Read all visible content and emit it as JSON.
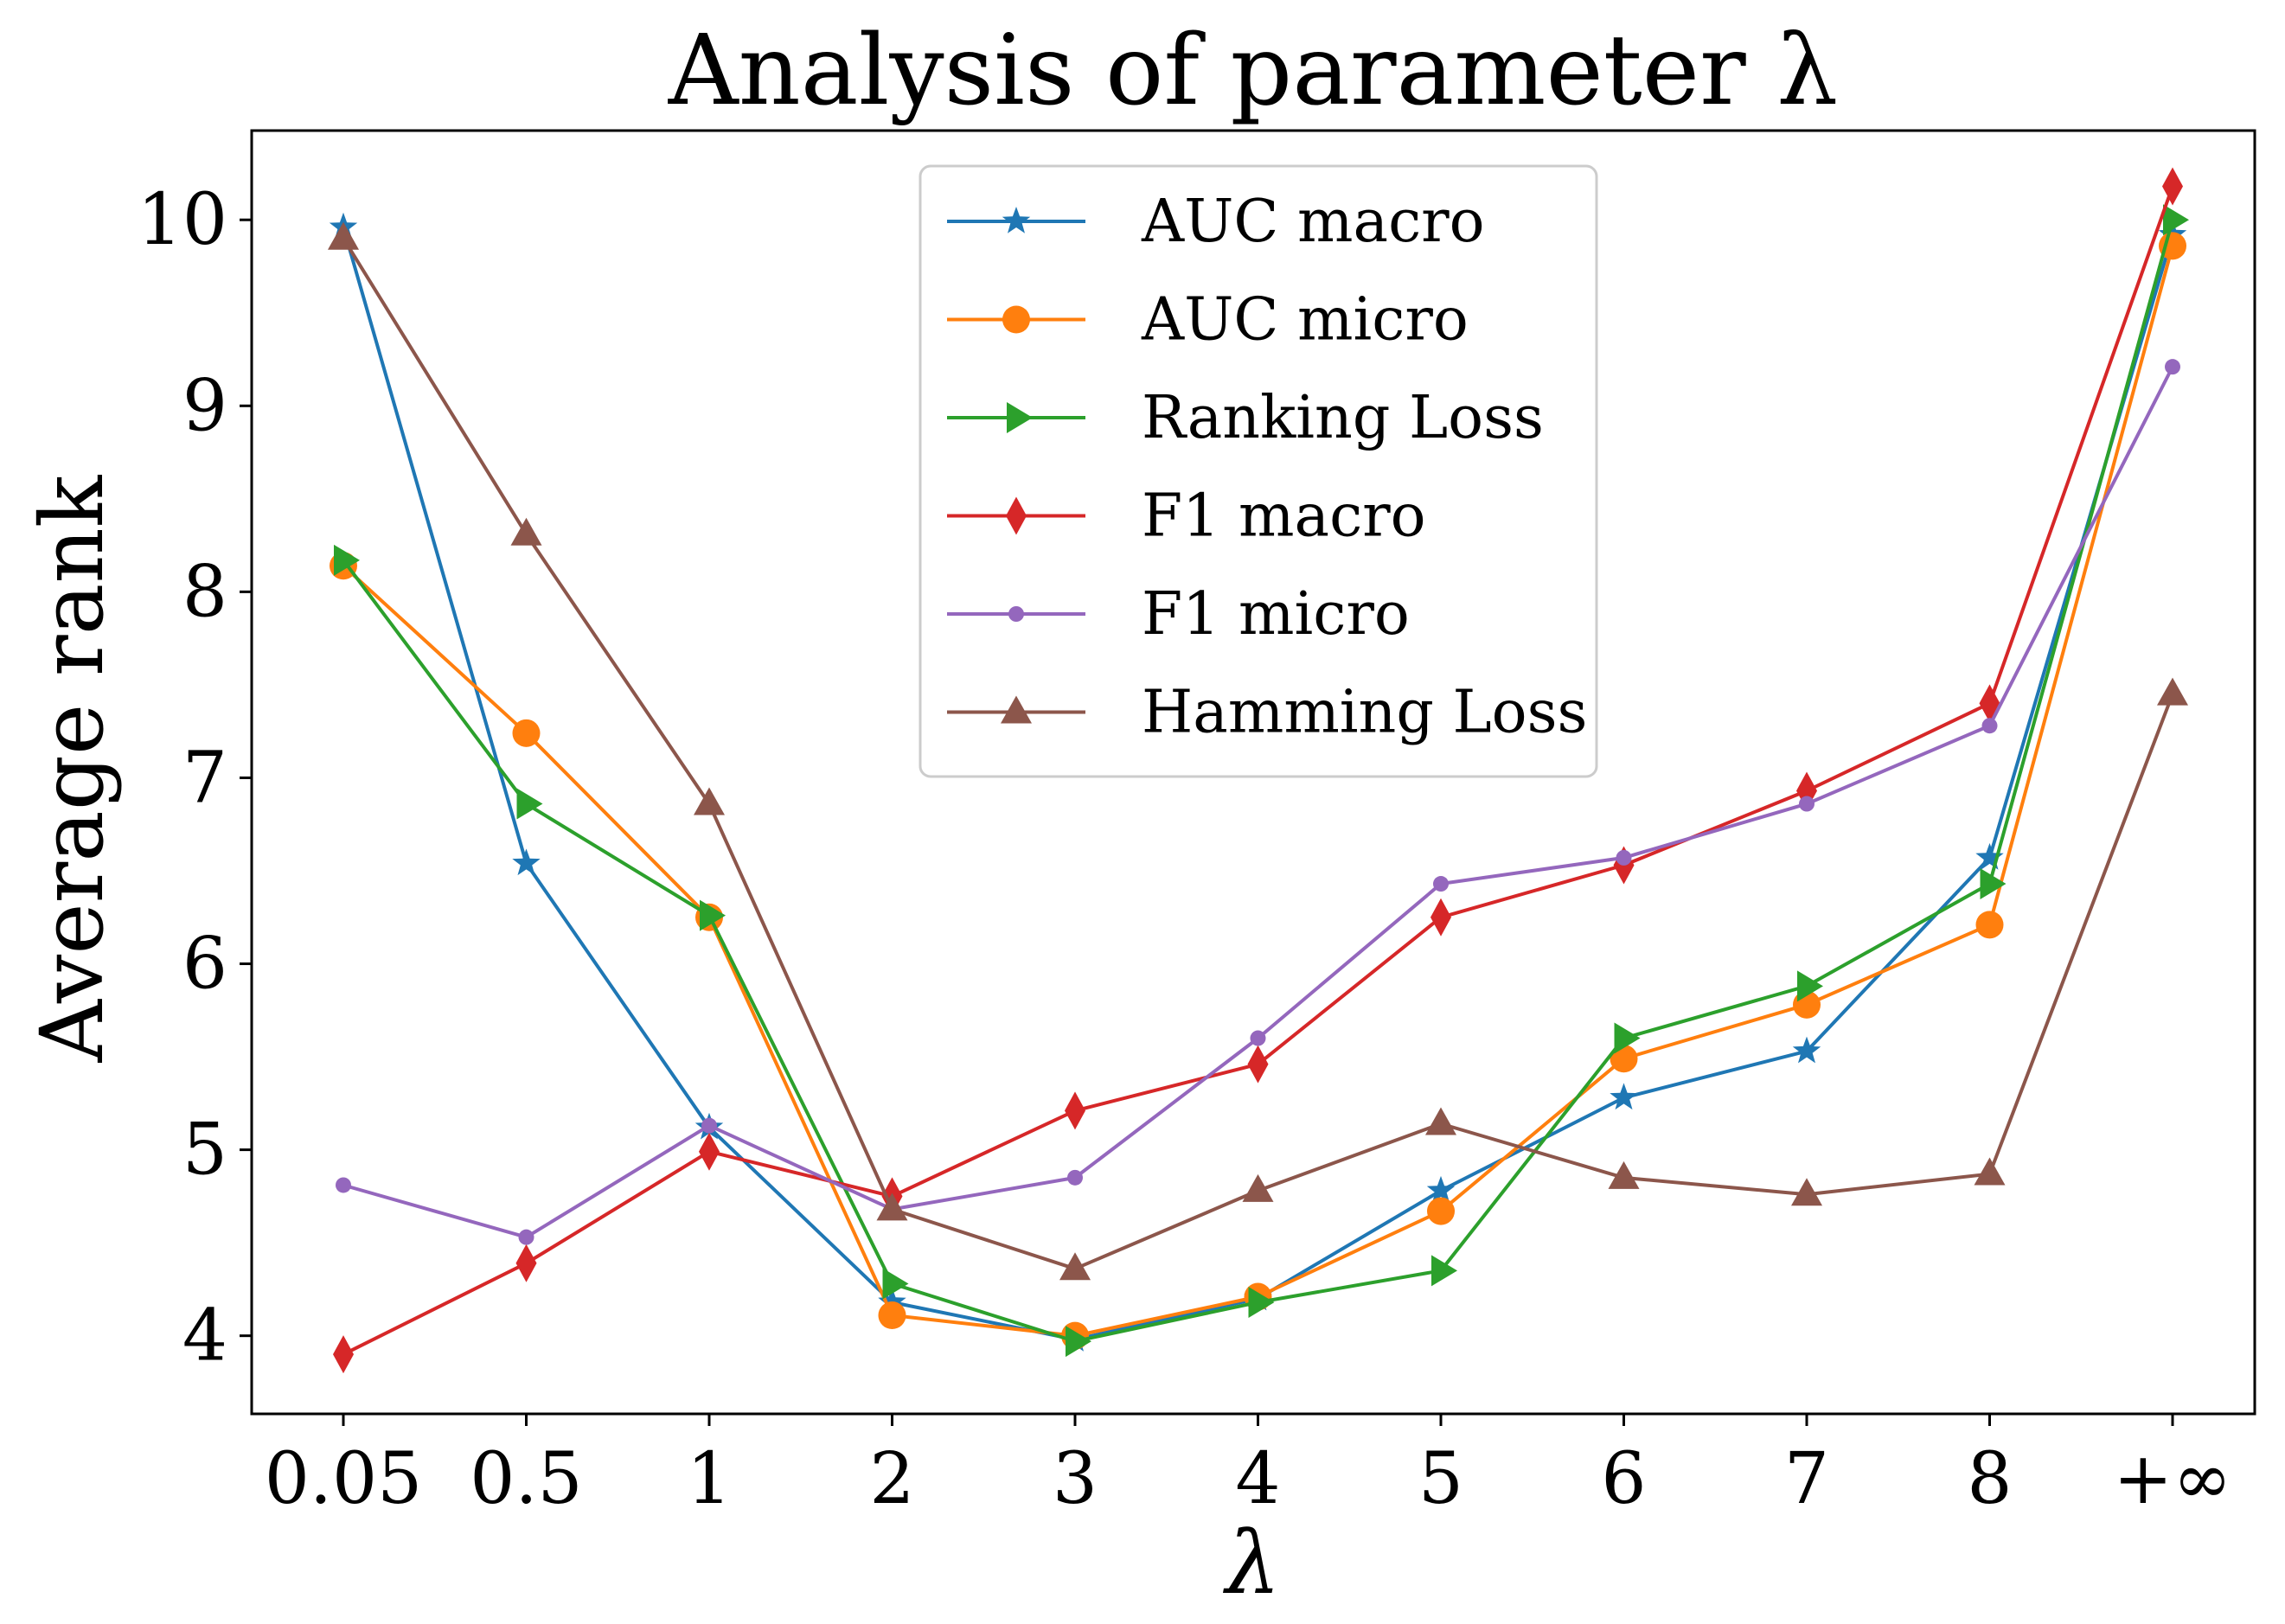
{
  "chart_data": {
    "type": "line",
    "title": "Analysis of parameter λ",
    "xlabel": "λ",
    "ylabel": "Average rank",
    "categories": [
      "0.05",
      "0.5",
      "1",
      "2",
      "3",
      "4",
      "5",
      "6",
      "7",
      "8",
      "+∞"
    ],
    "y_ticks": [
      4,
      5,
      6,
      7,
      8,
      9,
      10
    ],
    "ylim": [
      3.58,
      10.48
    ],
    "grid": false,
    "legend_position": "top-center",
    "series": [
      {
        "name": "AUC macro",
        "marker": "star",
        "color": "#1f77b4",
        "values": [
          9.96,
          6.54,
          5.12,
          4.18,
          3.98,
          4.2,
          4.78,
          5.28,
          5.53,
          6.57,
          9.92
        ]
      },
      {
        "name": "AUC micro",
        "marker": "circle",
        "color": "#ff7f0e",
        "values": [
          8.14,
          7.24,
          6.25,
          4.11,
          4.0,
          4.21,
          4.67,
          5.49,
          5.78,
          6.21,
          9.86
        ]
      },
      {
        "name": "Ranking Loss",
        "marker": "triangle-right",
        "color": "#2ca02c",
        "values": [
          8.17,
          6.86,
          6.26,
          4.28,
          3.97,
          4.18,
          4.35,
          5.6,
          5.88,
          6.43,
          10.0
        ]
      },
      {
        "name": "F1 macro",
        "marker": "thin-diamond",
        "color": "#d62728",
        "values": [
          3.9,
          4.39,
          4.99,
          4.75,
          5.21,
          5.46,
          6.25,
          6.53,
          6.93,
          7.4,
          10.18
        ]
      },
      {
        "name": "F1 micro",
        "marker": "point",
        "color": "#9467bd",
        "values": [
          4.81,
          4.53,
          5.13,
          4.68,
          4.85,
          5.6,
          6.43,
          6.57,
          6.86,
          7.28,
          9.21
        ]
      },
      {
        "name": "Hamming Loss",
        "marker": "triangle-up",
        "color": "#8c564b",
        "values": [
          9.9,
          8.31,
          6.86,
          4.68,
          4.36,
          4.78,
          5.14,
          4.85,
          4.76,
          4.87,
          7.45
        ]
      }
    ]
  }
}
